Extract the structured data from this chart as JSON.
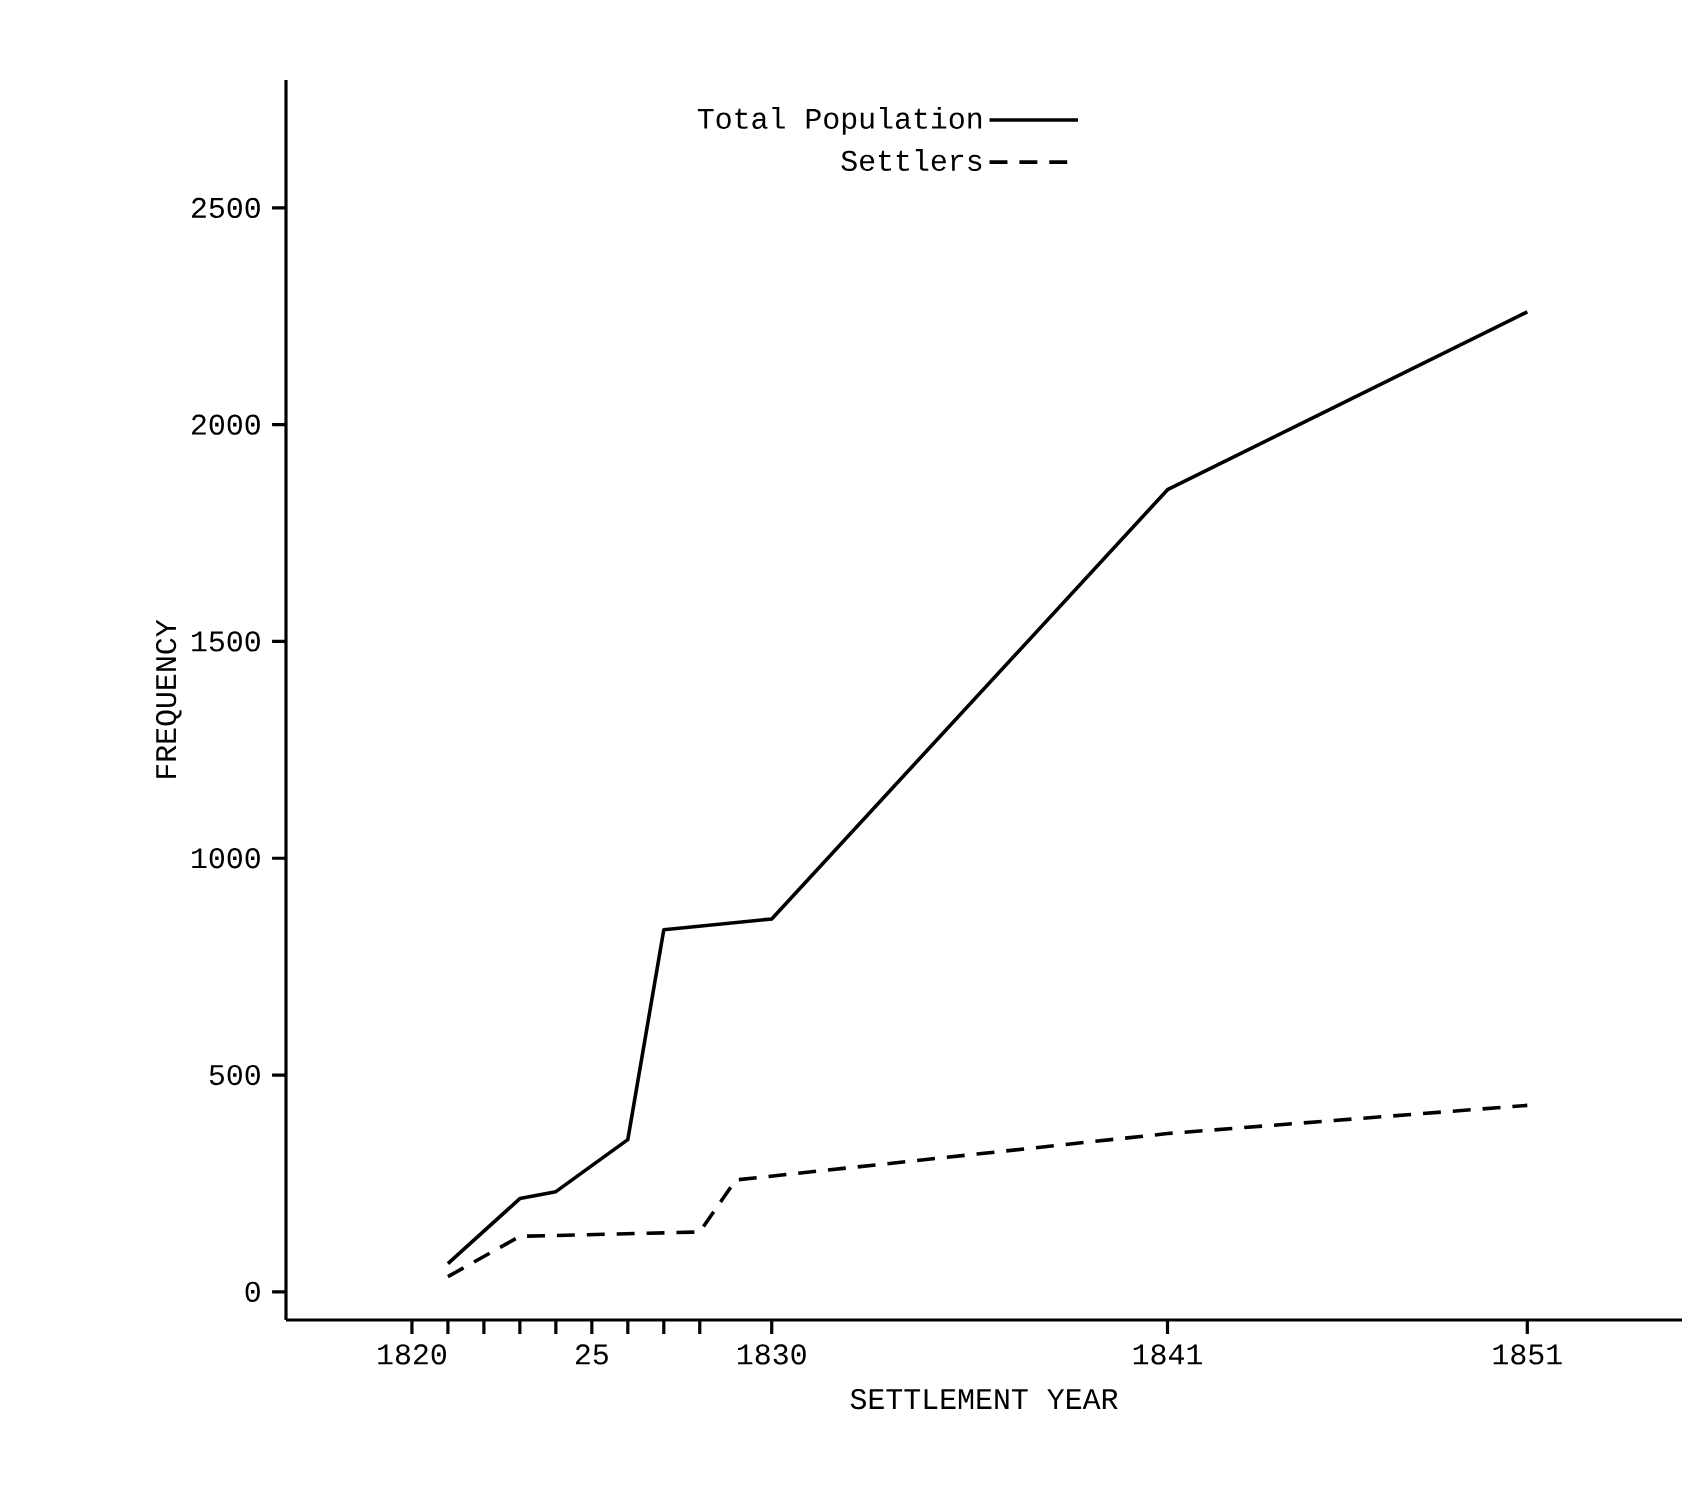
{
  "chart_data": {
    "type": "line",
    "xlabel": "SETTLEMENT YEAR",
    "ylabel": "FREQUENCY",
    "xlim": [
      1816.5,
      1855.3
    ],
    "ylim": [
      -65,
      2795
    ],
    "xticks": [
      {
        "value": 1820,
        "label": "1820"
      },
      {
        "value": 1821,
        "label": null
      },
      {
        "value": 1822,
        "label": null
      },
      {
        "value": 1823,
        "label": null
      },
      {
        "value": 1824,
        "label": null
      },
      {
        "value": 1825,
        "label": "25"
      },
      {
        "value": 1826,
        "label": null
      },
      {
        "value": 1827,
        "label": null
      },
      {
        "value": 1828,
        "label": null
      },
      1830,
      1841,
      1851
    ],
    "yticks": [
      0,
      500,
      1000,
      1500,
      2000,
      2500
    ],
    "legend": "top",
    "grid": false,
    "marker": "none",
    "series": [
      {
        "name": "Total Population",
        "color": "#000000",
        "line_style": "solid",
        "x": [
          1821,
          1823,
          1824,
          1826,
          1827,
          1830,
          1841,
          1851
        ],
        "values": [
          65,
          215,
          231,
          351,
          835,
          860,
          1850,
          2260
        ]
      },
      {
        "name": "Settlers",
        "color": "#000000",
        "line_style": "dashed",
        "x": [
          1821,
          1823,
          1828,
          1829,
          1841,
          1851
        ],
        "values": [
          35,
          128,
          138,
          258,
          365,
          430
        ]
      }
    ]
  }
}
